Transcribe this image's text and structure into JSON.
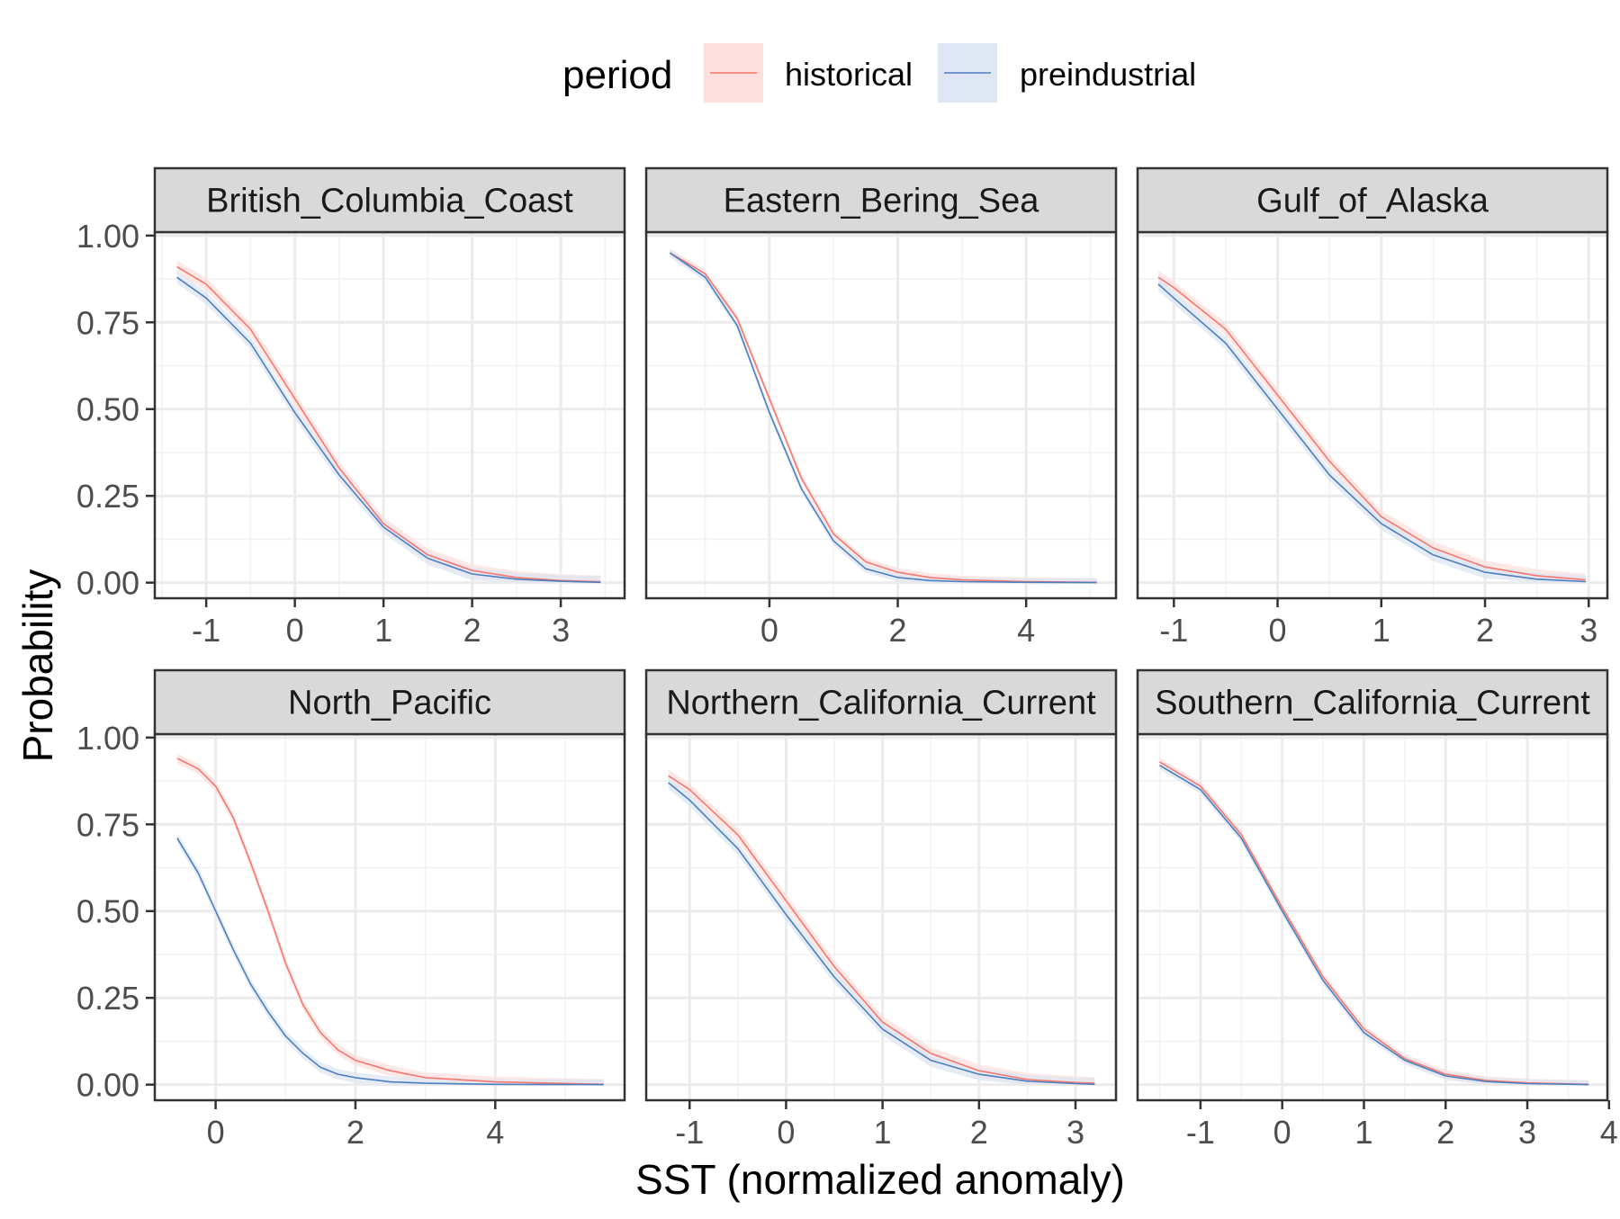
{
  "chart_data": {
    "type": "line",
    "xlabel": "SST (normalized anomaly)",
    "ylabel": "Probability",
    "legend": {
      "title": "period",
      "placement": "top",
      "entries": [
        {
          "label": "historical",
          "color": "#F8766D",
          "fill": "#FDE0DD"
        },
        {
          "label": "preindustrial",
          "color": "#4A7FC0",
          "fill": "#DDE6F2"
        }
      ]
    },
    "grid": true,
    "y_ticks": [
      0,
      0.25,
      0.5,
      0.75,
      1
    ],
    "y_tick_labels": [
      "0.00",
      "0.25",
      "0.50",
      "0.75",
      "1.00"
    ],
    "ylim": [
      -0.045,
      1.01
    ],
    "panels": [
      {
        "title": "British_Columbia_Coast",
        "xlim": [
          -1.58,
          3.72
        ],
        "x_ticks": [
          -1,
          0,
          1,
          2,
          3
        ],
        "x_tick_labels": [
          "-1",
          "0",
          "1",
          "2",
          "3"
        ],
        "band": 0.018,
        "series": [
          {
            "name": "historical",
            "x": [
              -1.33,
              -1.0,
              -0.5,
              0.0,
              0.5,
              1.0,
              1.5,
              2.0,
              2.5,
              3.0,
              3.45
            ],
            "y": [
              0.91,
              0.86,
              0.73,
              0.53,
              0.33,
              0.17,
              0.08,
              0.035,
              0.015,
              0.006,
              0.003
            ]
          },
          {
            "name": "preindustrial",
            "x": [
              -1.33,
              -1.0,
              -0.5,
              0.0,
              0.5,
              1.0,
              1.5,
              2.0,
              2.5,
              3.0,
              3.45
            ],
            "y": [
              0.88,
              0.82,
              0.69,
              0.49,
              0.31,
              0.16,
              0.07,
              0.025,
              0.01,
              0.004,
              0.001
            ]
          }
        ]
      },
      {
        "title": "Eastern_Bering_Sea",
        "xlim": [
          -1.92,
          5.4
        ],
        "x_ticks": [
          0,
          2,
          4
        ],
        "x_tick_labels": [
          "0",
          "2",
          "4"
        ],
        "band": 0.012,
        "series": [
          {
            "name": "historical",
            "x": [
              -1.55,
              -1.0,
              -0.5,
              0.0,
              0.5,
              1.0,
              1.5,
              2.0,
              2.5,
              3.0,
              4.0,
              5.1
            ],
            "y": [
              0.95,
              0.89,
              0.76,
              0.53,
              0.3,
              0.14,
              0.06,
              0.03,
              0.015,
              0.008,
              0.003,
              0.001
            ]
          },
          {
            "name": "preindustrial",
            "x": [
              -1.55,
              -1.0,
              -0.5,
              0.0,
              0.5,
              1.0,
              1.5,
              2.0,
              2.5,
              3.0,
              4.0,
              5.1
            ],
            "y": [
              0.95,
              0.88,
              0.74,
              0.49,
              0.27,
              0.12,
              0.04,
              0.015,
              0.006,
              0.003,
              0.001,
              0.0
            ]
          }
        ]
      },
      {
        "title": "Gulf_of_Alaska",
        "xlim": [
          -1.35,
          3.18
        ],
        "x_ticks": [
          -1,
          0,
          1,
          2,
          3
        ],
        "x_tick_labels": [
          "-1",
          "0",
          "1",
          "2",
          "3"
        ],
        "band": 0.018,
        "series": [
          {
            "name": "historical",
            "x": [
              -1.15,
              -1.0,
              -0.5,
              0.0,
              0.5,
              1.0,
              1.5,
              2.0,
              2.5,
              2.97
            ],
            "y": [
              0.88,
              0.85,
              0.73,
              0.54,
              0.35,
              0.19,
              0.1,
              0.045,
              0.02,
              0.008
            ]
          },
          {
            "name": "preindustrial",
            "x": [
              -1.15,
              -1.0,
              -0.5,
              0.0,
              0.5,
              1.0,
              1.5,
              2.0,
              2.5,
              2.97
            ],
            "y": [
              0.86,
              0.82,
              0.69,
              0.5,
              0.31,
              0.17,
              0.08,
              0.03,
              0.01,
              0.003
            ]
          }
        ]
      },
      {
        "title": "North_Pacific",
        "xlim": [
          -0.87,
          5.85
        ],
        "x_ticks": [
          0,
          2,
          4
        ],
        "x_tick_labels": [
          "0",
          "2",
          "4"
        ],
        "band": 0.015,
        "series": [
          {
            "name": "historical",
            "x": [
              -0.55,
              -0.25,
              0.0,
              0.25,
              0.5,
              0.75,
              1.0,
              1.25,
              1.5,
              1.75,
              2.0,
              2.5,
              3.0,
              4.0,
              5.55
            ],
            "y": [
              0.94,
              0.91,
              0.86,
              0.77,
              0.64,
              0.5,
              0.35,
              0.23,
              0.15,
              0.1,
              0.07,
              0.04,
              0.02,
              0.008,
              0.001
            ]
          },
          {
            "name": "preindustrial",
            "x": [
              -0.55,
              -0.25,
              0.0,
              0.25,
              0.5,
              0.75,
              1.0,
              1.25,
              1.5,
              1.75,
              2.0,
              2.5,
              3.0,
              4.0,
              5.55
            ],
            "y": [
              0.71,
              0.61,
              0.5,
              0.39,
              0.29,
              0.21,
              0.14,
              0.09,
              0.05,
              0.03,
              0.02,
              0.008,
              0.004,
              0.001,
              0.0
            ]
          }
        ]
      },
      {
        "title": "Northern_California_Current",
        "xlim": [
          -1.45,
          3.42
        ],
        "x_ticks": [
          -1,
          0,
          1,
          2,
          3
        ],
        "x_tick_labels": [
          "-1",
          "0",
          "1",
          "2",
          "3"
        ],
        "band": 0.018,
        "series": [
          {
            "name": "historical",
            "x": [
              -1.22,
              -1.0,
              -0.5,
              0.0,
              0.5,
              1.0,
              1.5,
              2.0,
              2.5,
              3.0,
              3.2
            ],
            "y": [
              0.89,
              0.85,
              0.72,
              0.53,
              0.34,
              0.18,
              0.09,
              0.04,
              0.015,
              0.006,
              0.004
            ]
          },
          {
            "name": "preindustrial",
            "x": [
              -1.22,
              -1.0,
              -0.5,
              0.0,
              0.5,
              1.0,
              1.5,
              2.0,
              2.5,
              3.0,
              3.2
            ],
            "y": [
              0.87,
              0.82,
              0.68,
              0.49,
              0.31,
              0.16,
              0.07,
              0.03,
              0.01,
              0.003,
              0.001
            ]
          }
        ]
      },
      {
        "title": "Southern_California_Current",
        "xlim": [
          -1.77,
          3.98
        ],
        "x_ticks": [
          -1,
          0,
          1,
          2,
          3,
          4
        ],
        "x_tick_labels": [
          "-1",
          "0",
          "1",
          "2",
          "3",
          "4"
        ],
        "band": 0.012,
        "series": [
          {
            "name": "historical",
            "x": [
              -1.5,
              -1.0,
              -0.5,
              0.0,
              0.5,
              1.0,
              1.5,
              2.0,
              2.5,
              3.0,
              3.75
            ],
            "y": [
              0.93,
              0.86,
              0.72,
              0.51,
              0.31,
              0.16,
              0.075,
              0.03,
              0.012,
              0.005,
              0.001
            ]
          },
          {
            "name": "preindustrial",
            "x": [
              -1.5,
              -1.0,
              -0.5,
              0.0,
              0.5,
              1.0,
              1.5,
              2.0,
              2.5,
              3.0,
              3.75
            ],
            "y": [
              0.92,
              0.85,
              0.71,
              0.5,
              0.3,
              0.15,
              0.07,
              0.025,
              0.009,
              0.003,
              0.0
            ]
          }
        ]
      }
    ]
  }
}
